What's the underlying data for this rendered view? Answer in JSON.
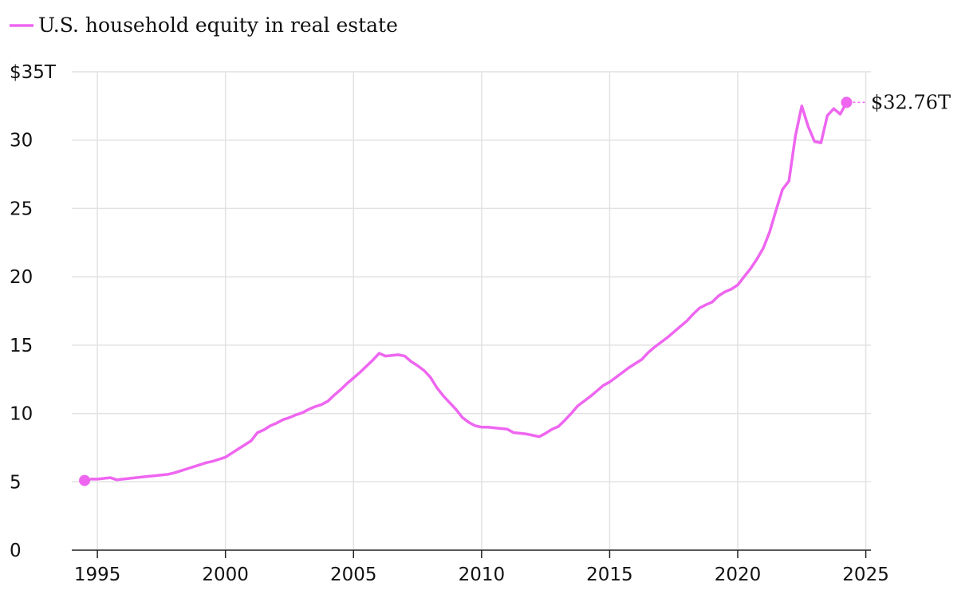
{
  "chart_data": {
    "type": "line",
    "title": "",
    "xlabel": "",
    "ylabel": "",
    "xlim": [
      1994,
      2025.2
    ],
    "ylim": [
      0,
      35
    ],
    "x_ticks": [
      1995,
      2000,
      2005,
      2010,
      2015,
      2020,
      2025
    ],
    "x_tick_labels": [
      "1995",
      "2000",
      "2005",
      "2010",
      "2015",
      "2020",
      "2025"
    ],
    "y_ticks": [
      0,
      5,
      10,
      15,
      20,
      25,
      30,
      35
    ],
    "y_tick_labels": [
      "0",
      "5",
      "10",
      "15",
      "20",
      "25",
      "30",
      "$35T"
    ],
    "grid": true,
    "legend_position": "top-left",
    "series": [
      {
        "name": "U.S. household equity in real estate",
        "color": "#ee66f0",
        "x": [
          1994.5,
          1994.75,
          1995,
          1995.25,
          1995.5,
          1995.75,
          1996,
          1996.25,
          1996.5,
          1996.75,
          1997,
          1997.25,
          1997.5,
          1997.75,
          1998,
          1998.25,
          1998.5,
          1998.75,
          1999,
          1999.25,
          1999.5,
          1999.75,
          2000,
          2000.25,
          2000.5,
          2000.75,
          2001,
          2001.25,
          2001.5,
          2001.75,
          2002,
          2002.25,
          2002.5,
          2002.75,
          2003,
          2003.25,
          2003.5,
          2003.75,
          2004,
          2004.25,
          2004.5,
          2004.75,
          2005,
          2005.25,
          2005.5,
          2005.75,
          2006,
          2006.25,
          2006.5,
          2006.75,
          2007,
          2007.25,
          2007.5,
          2007.75,
          2008,
          2008.25,
          2008.5,
          2008.75,
          2009,
          2009.25,
          2009.5,
          2009.75,
          2010,
          2010.25,
          2010.5,
          2010.75,
          2011,
          2011.25,
          2011.5,
          2011.75,
          2012,
          2012.25,
          2012.5,
          2012.75,
          2013,
          2013.25,
          2013.5,
          2013.75,
          2014,
          2014.25,
          2014.5,
          2014.75,
          2015,
          2015.25,
          2015.5,
          2015.75,
          2016,
          2016.25,
          2016.5,
          2016.75,
          2017,
          2017.25,
          2017.5,
          2017.75,
          2018,
          2018.25,
          2018.5,
          2018.75,
          2019,
          2019.25,
          2019.5,
          2019.75,
          2020,
          2020.25,
          2020.5,
          2020.75,
          2021,
          2021.25,
          2021.5,
          2021.75,
          2022,
          2022.25,
          2022.5,
          2022.75,
          2023,
          2023.25,
          2023.5,
          2023.75,
          2024,
          2024.25
        ],
        "values": [
          5.1,
          5.2,
          5.2,
          5.25,
          5.3,
          5.15,
          5.2,
          5.25,
          5.3,
          5.35,
          5.4,
          5.45,
          5.5,
          5.55,
          5.65,
          5.8,
          5.95,
          6.1,
          6.25,
          6.4,
          6.5,
          6.65,
          6.8,
          7.1,
          7.4,
          7.7,
          8.0,
          8.6,
          8.8,
          9.1,
          9.3,
          9.55,
          9.7,
          9.9,
          10.05,
          10.3,
          10.5,
          10.65,
          10.9,
          11.35,
          11.75,
          12.2,
          12.6,
          13.0,
          13.45,
          13.9,
          14.4,
          14.2,
          14.25,
          14.3,
          14.2,
          13.8,
          13.5,
          13.15,
          12.65,
          11.9,
          11.3,
          10.8,
          10.3,
          9.7,
          9.35,
          9.1,
          9.0,
          9.0,
          8.95,
          8.9,
          8.85,
          8.6,
          8.55,
          8.5,
          8.4,
          8.3,
          8.55,
          8.85,
          9.05,
          9.5,
          10.0,
          10.55,
          10.9,
          11.25,
          11.65,
          12.05,
          12.3,
          12.65,
          13.0,
          13.35,
          13.65,
          13.95,
          14.45,
          14.85,
          15.2,
          15.55,
          15.95,
          16.35,
          16.75,
          17.25,
          17.7,
          17.95,
          18.15,
          18.6,
          18.9,
          19.1,
          19.4,
          20.0,
          20.6,
          21.3,
          22.1,
          23.3,
          24.9,
          26.4,
          27.0,
          30.3,
          32.5,
          31.0,
          29.9,
          29.8,
          31.8,
          32.3,
          31.9,
          32.76
        ]
      }
    ],
    "end_label": "$32.76T"
  }
}
